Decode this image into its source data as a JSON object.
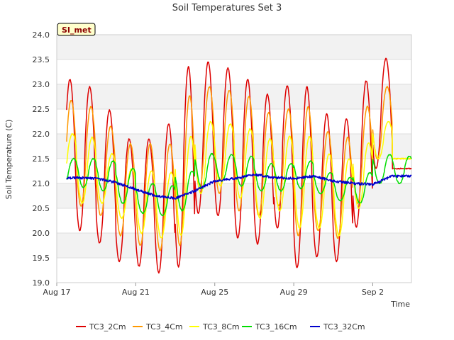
{
  "chart_data": {
    "type": "line",
    "title": "Soil Temperatures Set 3",
    "xlabel": "Time",
    "ylabel": "Soil Temperature (C)",
    "badge": "SI_met",
    "ylim": [
      19.0,
      24.0
    ],
    "yticks": [
      "19.0",
      "19.5",
      "20.0",
      "20.5",
      "21.0",
      "21.5",
      "22.0",
      "22.5",
      "23.0",
      "23.5",
      "24.0"
    ],
    "xlim": [
      "2024-08-17",
      "2024-09-03T23:00"
    ],
    "xticks": [
      {
        "label": "Aug 17",
        "date": "2024-08-17"
      },
      {
        "label": "Aug 21",
        "date": "2024-08-21"
      },
      {
        "label": "Aug 25",
        "date": "2024-08-25"
      },
      {
        "label": "Aug 29",
        "date": "2024-08-29"
      },
      {
        "label": "Sep 2",
        "date": "2024-09-02"
      }
    ],
    "grid": true,
    "legend_position": "bottom",
    "days": [
      "Aug 17",
      "Aug 18",
      "Aug 19",
      "Aug 20",
      "Aug 21",
      "Aug 22",
      "Aug 23",
      "Aug 24",
      "Aug 25",
      "Aug 26",
      "Aug 27",
      "Aug 28",
      "Aug 29",
      "Aug 30",
      "Aug 31",
      "Sep 1",
      "Sep 2",
      "Sep 3"
    ],
    "series": [
      {
        "name": "TC3_2Cm",
        "color": "#dd0000",
        "daily_max": [
          23.1,
          22.95,
          22.48,
          21.9,
          21.9,
          22.2,
          23.35,
          23.45,
          23.33,
          23.1,
          22.8,
          22.97,
          22.95,
          22.4,
          22.3,
          23.07,
          23.52,
          21.3
        ],
        "daily_min": [
          20.2,
          20.05,
          19.8,
          19.43,
          19.33,
          19.2,
          19.32,
          20.4,
          20.35,
          19.9,
          19.78,
          20.1,
          19.3,
          19.52,
          19.43,
          20.12,
          21.3,
          21.3
        ]
      },
      {
        "name": "TC3_4Cm",
        "color": "#ff9900",
        "daily_max": [
          22.68,
          22.55,
          22.15,
          21.8,
          21.8,
          21.8,
          22.77,
          22.95,
          22.88,
          22.75,
          22.43,
          22.5,
          22.55,
          22.05,
          21.93,
          22.55,
          22.95,
          21.5
        ],
        "daily_min": [
          20.6,
          20.55,
          20.35,
          19.95,
          19.75,
          19.65,
          19.75,
          20.9,
          20.8,
          20.45,
          20.35,
          20.55,
          19.95,
          20.05,
          19.9,
          20.6,
          21.5,
          21.5
        ]
      },
      {
        "name": "TC3_8Cm",
        "color": "#ffff00",
        "daily_max": [
          22.0,
          21.93,
          21.6,
          21.3,
          21.25,
          21.22,
          21.95,
          22.25,
          22.2,
          22.1,
          21.9,
          21.95,
          21.95,
          21.6,
          21.5,
          21.82,
          22.25,
          21.5
        ],
        "daily_min": [
          21.1,
          20.6,
          20.6,
          20.3,
          20.0,
          19.9,
          19.95,
          20.8,
          20.95,
          20.7,
          20.3,
          20.45,
          20.1,
          20.1,
          19.95,
          20.5,
          21.5,
          21.5
        ]
      },
      {
        "name": "TC3_16Cm",
        "color": "#00dd00",
        "daily_max": [
          21.5,
          21.5,
          21.45,
          21.3,
          21.0,
          20.95,
          21.25,
          21.6,
          21.58,
          21.55,
          21.4,
          21.4,
          21.45,
          21.22,
          21.12,
          21.22,
          21.58,
          21.55
        ],
        "daily_min": [
          21.0,
          20.92,
          20.85,
          20.6,
          20.4,
          20.35,
          20.45,
          20.9,
          21.05,
          20.95,
          20.85,
          20.85,
          20.9,
          20.8,
          20.65,
          20.6,
          21.0,
          21.0
        ]
      },
      {
        "name": "TC3_32Cm",
        "color": "#0000cc",
        "daily_mean": [
          21.08,
          21.12,
          21.1,
          21.02,
          20.88,
          20.75,
          20.7,
          20.85,
          21.05,
          21.1,
          21.18,
          21.12,
          21.1,
          21.15,
          21.05,
          21.0,
          20.98,
          21.15
        ]
      }
    ]
  }
}
